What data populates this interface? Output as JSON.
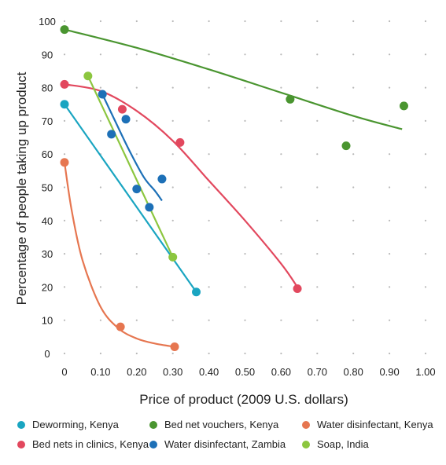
{
  "chart_data": {
    "type": "scatter",
    "title": "",
    "xlabel": "Price of product (2009 U.S. dollars)",
    "ylabel": "Percentage of people taking up product",
    "xlim": [
      0,
      1.0
    ],
    "ylim": [
      0,
      100
    ],
    "x_ticks": [
      "0",
      "0.10",
      "0.20",
      "0.30",
      "0.40",
      "0.50",
      "0.60",
      "0.70",
      "0.80",
      "0.90",
      "1.00"
    ],
    "y_ticks": [
      "0",
      "10",
      "20",
      "30",
      "40",
      "50",
      "60",
      "70",
      "80",
      "90",
      "100"
    ],
    "grid": "dotted",
    "legend_position": "bottom",
    "series": [
      {
        "name": "Deworming, Kenya",
        "color": "#1aa5c1",
        "points": [
          [
            0,
            75
          ],
          [
            0.365,
            18.5
          ]
        ],
        "trend": [
          [
            0,
            75
          ],
          [
            0.365,
            18.5
          ]
        ]
      },
      {
        "name": "Bed nets in clinics, Kenya",
        "color": "#e2485e",
        "points": [
          [
            0,
            81
          ],
          [
            0.16,
            73.5
          ],
          [
            0.32,
            63.5
          ],
          [
            0.645,
            19.5
          ]
        ],
        "trend": [
          [
            0,
            81
          ],
          [
            0.1,
            79
          ],
          [
            0.2,
            73
          ],
          [
            0.3,
            64
          ],
          [
            0.4,
            52
          ],
          [
            0.5,
            40
          ],
          [
            0.6,
            27
          ],
          [
            0.645,
            20
          ]
        ]
      },
      {
        "name": "Bed net vouchers, Kenya",
        "color": "#4a9530",
        "points": [
          [
            0,
            97.5
          ],
          [
            0.625,
            76.5
          ],
          [
            0.78,
            62.5
          ],
          [
            0.94,
            74.5
          ]
        ],
        "trend": [
          [
            0,
            97.5
          ],
          [
            0.2,
            92
          ],
          [
            0.4,
            85.5
          ],
          [
            0.6,
            78.5
          ],
          [
            0.8,
            71.5
          ],
          [
            0.935,
            67.5
          ]
        ]
      },
      {
        "name": "Water disinfectant, Zambia",
        "color": "#1d70b7",
        "points": [
          [
            0.105,
            78
          ],
          [
            0.13,
            66
          ],
          [
            0.17,
            70.5
          ],
          [
            0.2,
            49.5
          ],
          [
            0.235,
            44
          ],
          [
            0.27,
            52.5
          ]
        ],
        "trend": [
          [
            0.105,
            78
          ],
          [
            0.14,
            70
          ],
          [
            0.18,
            61
          ],
          [
            0.22,
            53
          ],
          [
            0.25,
            49
          ],
          [
            0.27,
            46
          ]
        ]
      },
      {
        "name": "Water disinfectant, Kenya",
        "color": "#e67650",
        "points": [
          [
            0,
            57.5
          ],
          [
            0.155,
            8
          ],
          [
            0.305,
            2
          ]
        ],
        "trend": [
          [
            0,
            57.5
          ],
          [
            0.02,
            43
          ],
          [
            0.05,
            28
          ],
          [
            0.1,
            14
          ],
          [
            0.15,
            7.5
          ],
          [
            0.2,
            4.5
          ],
          [
            0.25,
            3
          ],
          [
            0.305,
            2
          ]
        ]
      },
      {
        "name": "Soap, India",
        "color": "#8cc63f",
        "points": [
          [
            0.065,
            83.5
          ],
          [
            0.3,
            29
          ]
        ],
        "trend": [
          [
            0.065,
            83.5
          ],
          [
            0.3,
            29
          ]
        ]
      }
    ]
  }
}
